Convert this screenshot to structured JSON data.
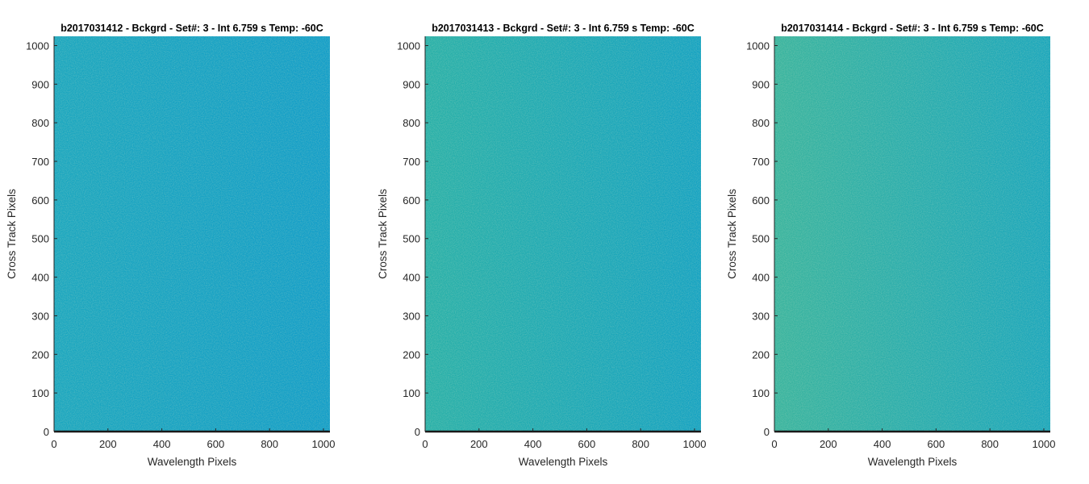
{
  "chart_data": [
    {
      "type": "heatmap",
      "title": "b2017031412 - Bckgrd - Set#: 3 - Int 6.759 s Temp: -60C",
      "xlabel": "Wavelength Pixels",
      "ylabel": "Cross Track Pixels",
      "xlim": [
        0,
        1024
      ],
      "ylim": [
        0,
        1024
      ],
      "xticks": [
        0,
        200,
        400,
        600,
        800,
        1000
      ],
      "yticks": [
        0,
        100,
        200,
        300,
        400,
        500,
        600,
        700,
        800,
        900,
        1000
      ],
      "grid": false,
      "colors": {
        "left": "#1aa6bf",
        "right": "#119dc8"
      }
    },
    {
      "type": "heatmap",
      "title": "b2017031413 - Bckgrd - Set#: 3 - Int 6.759 s Temp: -60C",
      "xlabel": "Wavelength Pixels",
      "ylabel": "Cross Track Pixels",
      "xlim": [
        0,
        1024
      ],
      "ylim": [
        0,
        1024
      ],
      "xticks": [
        0,
        200,
        400,
        600,
        800,
        1000
      ],
      "yticks": [
        0,
        100,
        200,
        300,
        400,
        500,
        600,
        700,
        800,
        900,
        1000
      ],
      "grid": false,
      "colors": {
        "left": "#28b0a8",
        "right": "#14a2c2"
      }
    },
    {
      "type": "heatmap",
      "title": "b2017031414 - Bckgrd - Set#: 3 - Int 6.759 s Temp: -60C",
      "xlabel": "Wavelength Pixels",
      "ylabel": "Cross Track Pixels",
      "xlim": [
        0,
        1024
      ],
      "ylim": [
        0,
        1024
      ],
      "xticks": [
        0,
        200,
        400,
        600,
        800,
        1000
      ],
      "yticks": [
        0,
        100,
        200,
        300,
        400,
        500,
        600,
        700,
        800,
        900,
        1000
      ],
      "grid": false,
      "colors": {
        "left": "#39b49e",
        "right": "#1aa6bc"
      }
    }
  ]
}
